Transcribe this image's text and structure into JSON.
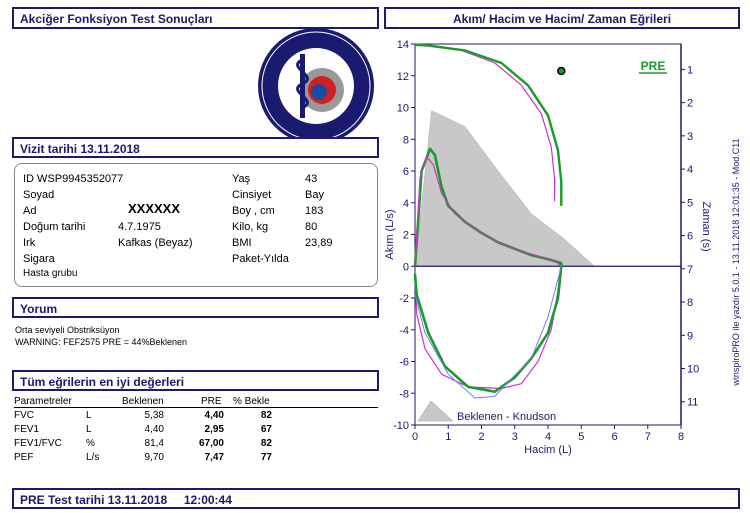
{
  "header": {
    "left_title": "Akciğer Fonksiyon Test Sonuçları",
    "right_title": "Akım/ Hacim ve Hacim/ Zaman Eğrileri"
  },
  "logo": {
    "text": "BAŞKENT İŞ SAĞLIĞI GÜVENLİĞİ ve ÇEVRE ÖLÇÜM MERKEZİ"
  },
  "visit": {
    "label": "Vizit tarihi 13.11.2018"
  },
  "patient": {
    "id": "ID WSP9945352077",
    "soyad_label": "Soyad",
    "ad_label": "Ad",
    "ad_value": "XXXXXX",
    "dogum_label": "Doğum tarihi",
    "dogum_value": "4.7.1975",
    "irk_label": "Irk",
    "irk_value": "Kafkas (Beyaz)",
    "sigara_label": "Sigara",
    "hasta_label": "Hasta grubu",
    "yas_label": "Yaş",
    "yas_value": "43",
    "cinsiyet_label": "Cinsiyet",
    "cinsiyet_value": "Bay",
    "boy_label": "Boy , cm",
    "boy_value": "183",
    "kilo_label": "Kilo, kg",
    "kilo_value": "80",
    "bmi_label": "BMI",
    "bmi_value": "23,89",
    "paket_label": "Paket-Yılda"
  },
  "comment": {
    "header": "Yorum",
    "line1": "Orta seviyeli Obstriksüyon",
    "line2": "WARNING: FEF2575 PRE = 44%Beklenen"
  },
  "best": {
    "header": "Tüm eğrilerin en iyi değerleri",
    "columns": [
      "Parametreler",
      "Beklenen",
      "PRE",
      "% Bekle"
    ],
    "rows": [
      {
        "param": "FVC",
        "unit": "L",
        "pred": "5,38",
        "pre": "4,40",
        "pct": "82"
      },
      {
        "param": "FEV1",
        "unit": "L",
        "pred": "4,40",
        "pre": "2,95",
        "pct": "67"
      },
      {
        "param": "FEV1/FVC",
        "unit": "%",
        "pred": "81,4",
        "pre": "67,00",
        "pct": "82"
      },
      {
        "param": "PEF",
        "unit": "L/s",
        "pred": "9,70",
        "pre": "7,47",
        "pct": "77"
      }
    ]
  },
  "footer": {
    "text": "PRE Test tarihi 13.11.2018     12:00:44"
  },
  "side_note": "winspiroPRO ile yazdır 5.0.1 - 13.11.2018 12:01:35 - Mod.C11",
  "colors": {
    "navy": "#1a1a6e",
    "pre_green": "#1a9a2a",
    "magenta": "#cc33cc",
    "predicted_fill": "#c8c8c8",
    "blue_line": "#7a7aee"
  },
  "chart_data": {
    "type": "line",
    "xlabel": "Hacim (L)",
    "ylabel_left": "Akım (L/s)",
    "ylabel_right": "Zaman (s)",
    "xlim": [
      0,
      8
    ],
    "ylim": [
      -10,
      14
    ],
    "x_ticks": [
      "0",
      "1",
      "2",
      "3",
      "4",
      "5",
      "6",
      "7",
      "8"
    ],
    "y_ticks": [
      "14",
      "12",
      "10",
      "8",
      "6",
      "4",
      "2",
      "0",
      "-2",
      "-4",
      "-6",
      "-8",
      "-10"
    ],
    "right_ticks": [
      "1",
      "2",
      "3",
      "4",
      "5",
      "6",
      "7",
      "8",
      "9",
      "10",
      "11"
    ],
    "legend_pre": "PRE",
    "legend_predicted": "Beklenen - Knudson",
    "series": [
      {
        "name": "PRE",
        "points": [
          [
            0,
            0
          ],
          [
            0.2,
            6.0
          ],
          [
            0.45,
            7.4
          ],
          [
            0.6,
            7.0
          ],
          [
            0.8,
            5.0
          ],
          [
            1.0,
            3.8
          ],
          [
            1.5,
            2.8
          ],
          [
            2.0,
            2.1
          ],
          [
            2.5,
            1.5
          ],
          [
            3.0,
            1.1
          ],
          [
            3.5,
            0.7
          ],
          [
            4.0,
            0.45
          ],
          [
            4.4,
            0.2
          ],
          [
            4.4,
            0
          ]
        ]
      },
      {
        "points": [
          [
            0,
            0
          ],
          [
            0.15,
            5.6
          ],
          [
            0.35,
            6.9
          ],
          [
            0.55,
            6.4
          ],
          [
            0.8,
            4.6
          ],
          [
            1.2,
            3.3
          ],
          [
            1.8,
            2.4
          ],
          [
            2.4,
            1.6
          ],
          [
            3.0,
            1.1
          ],
          [
            3.6,
            0.7
          ],
          [
            4.2,
            0.35
          ],
          [
            4.4,
            0
          ]
        ]
      },
      {
        "points": [
          [
            4.4,
            0
          ],
          [
            4.3,
            -1.5
          ],
          [
            4.1,
            -4.0
          ],
          [
            3.7,
            -6.0
          ],
          [
            3.2,
            -7.4
          ],
          [
            2.6,
            -7.7
          ],
          [
            1.6,
            -7.6
          ],
          [
            0.8,
            -6.8
          ],
          [
            0.3,
            -5.2
          ],
          [
            0.05,
            -3.0
          ],
          [
            0,
            -0.8
          ]
        ]
      },
      {
        "points": [
          [
            4.4,
            0
          ],
          [
            4.3,
            -2.0
          ],
          [
            4.0,
            -4.2
          ],
          [
            3.5,
            -5.8
          ],
          [
            3.0,
            -7.0
          ],
          [
            2.4,
            -7.9
          ],
          [
            1.6,
            -7.6
          ],
          [
            0.9,
            -6.3
          ],
          [
            0.4,
            -4.2
          ],
          [
            0.05,
            -1.8
          ],
          [
            0,
            -0.5
          ]
        ]
      },
      {
        "points": [
          [
            4.4,
            0
          ],
          [
            4.0,
            -3.2
          ],
          [
            3.5,
            -5.8
          ],
          [
            2.8,
            -7.3
          ],
          [
            2.4,
            -8.2
          ],
          [
            1.8,
            -8.3
          ],
          [
            1.0,
            -6.8
          ],
          [
            0.3,
            -4.2
          ],
          [
            0,
            -1.8
          ]
        ]
      },
      {
        "points": [
          [
            4.2,
            4.1
          ],
          [
            4.2,
            5.5
          ],
          [
            4.1,
            7.5
          ],
          [
            3.8,
            9.6
          ],
          [
            3.2,
            11.4
          ],
          [
            2.4,
            12.8
          ],
          [
            1.4,
            13.6
          ],
          [
            0.4,
            13.95
          ],
          [
            0,
            14
          ]
        ]
      },
      {
        "points": [
          [
            4.4,
            3.8
          ],
          [
            4.4,
            5.3
          ],
          [
            4.3,
            7.3
          ],
          [
            4.0,
            9.5
          ],
          [
            3.4,
            11.4
          ],
          [
            2.6,
            12.8
          ],
          [
            1.5,
            13.6
          ],
          [
            0.4,
            13.9
          ],
          [
            0,
            13.95
          ]
        ]
      }
    ],
    "predicted_area": [
      [
        0,
        0
      ],
      [
        0.5,
        9.8
      ],
      [
        1.5,
        8.8
      ],
      [
        2.5,
        6.0
      ],
      [
        3.5,
        3.3
      ],
      [
        4.5,
        1.7
      ],
      [
        5.4,
        0
      ],
      [
        0,
        0
      ]
    ],
    "marker": [
      4.4,
      12.3
    ]
  }
}
